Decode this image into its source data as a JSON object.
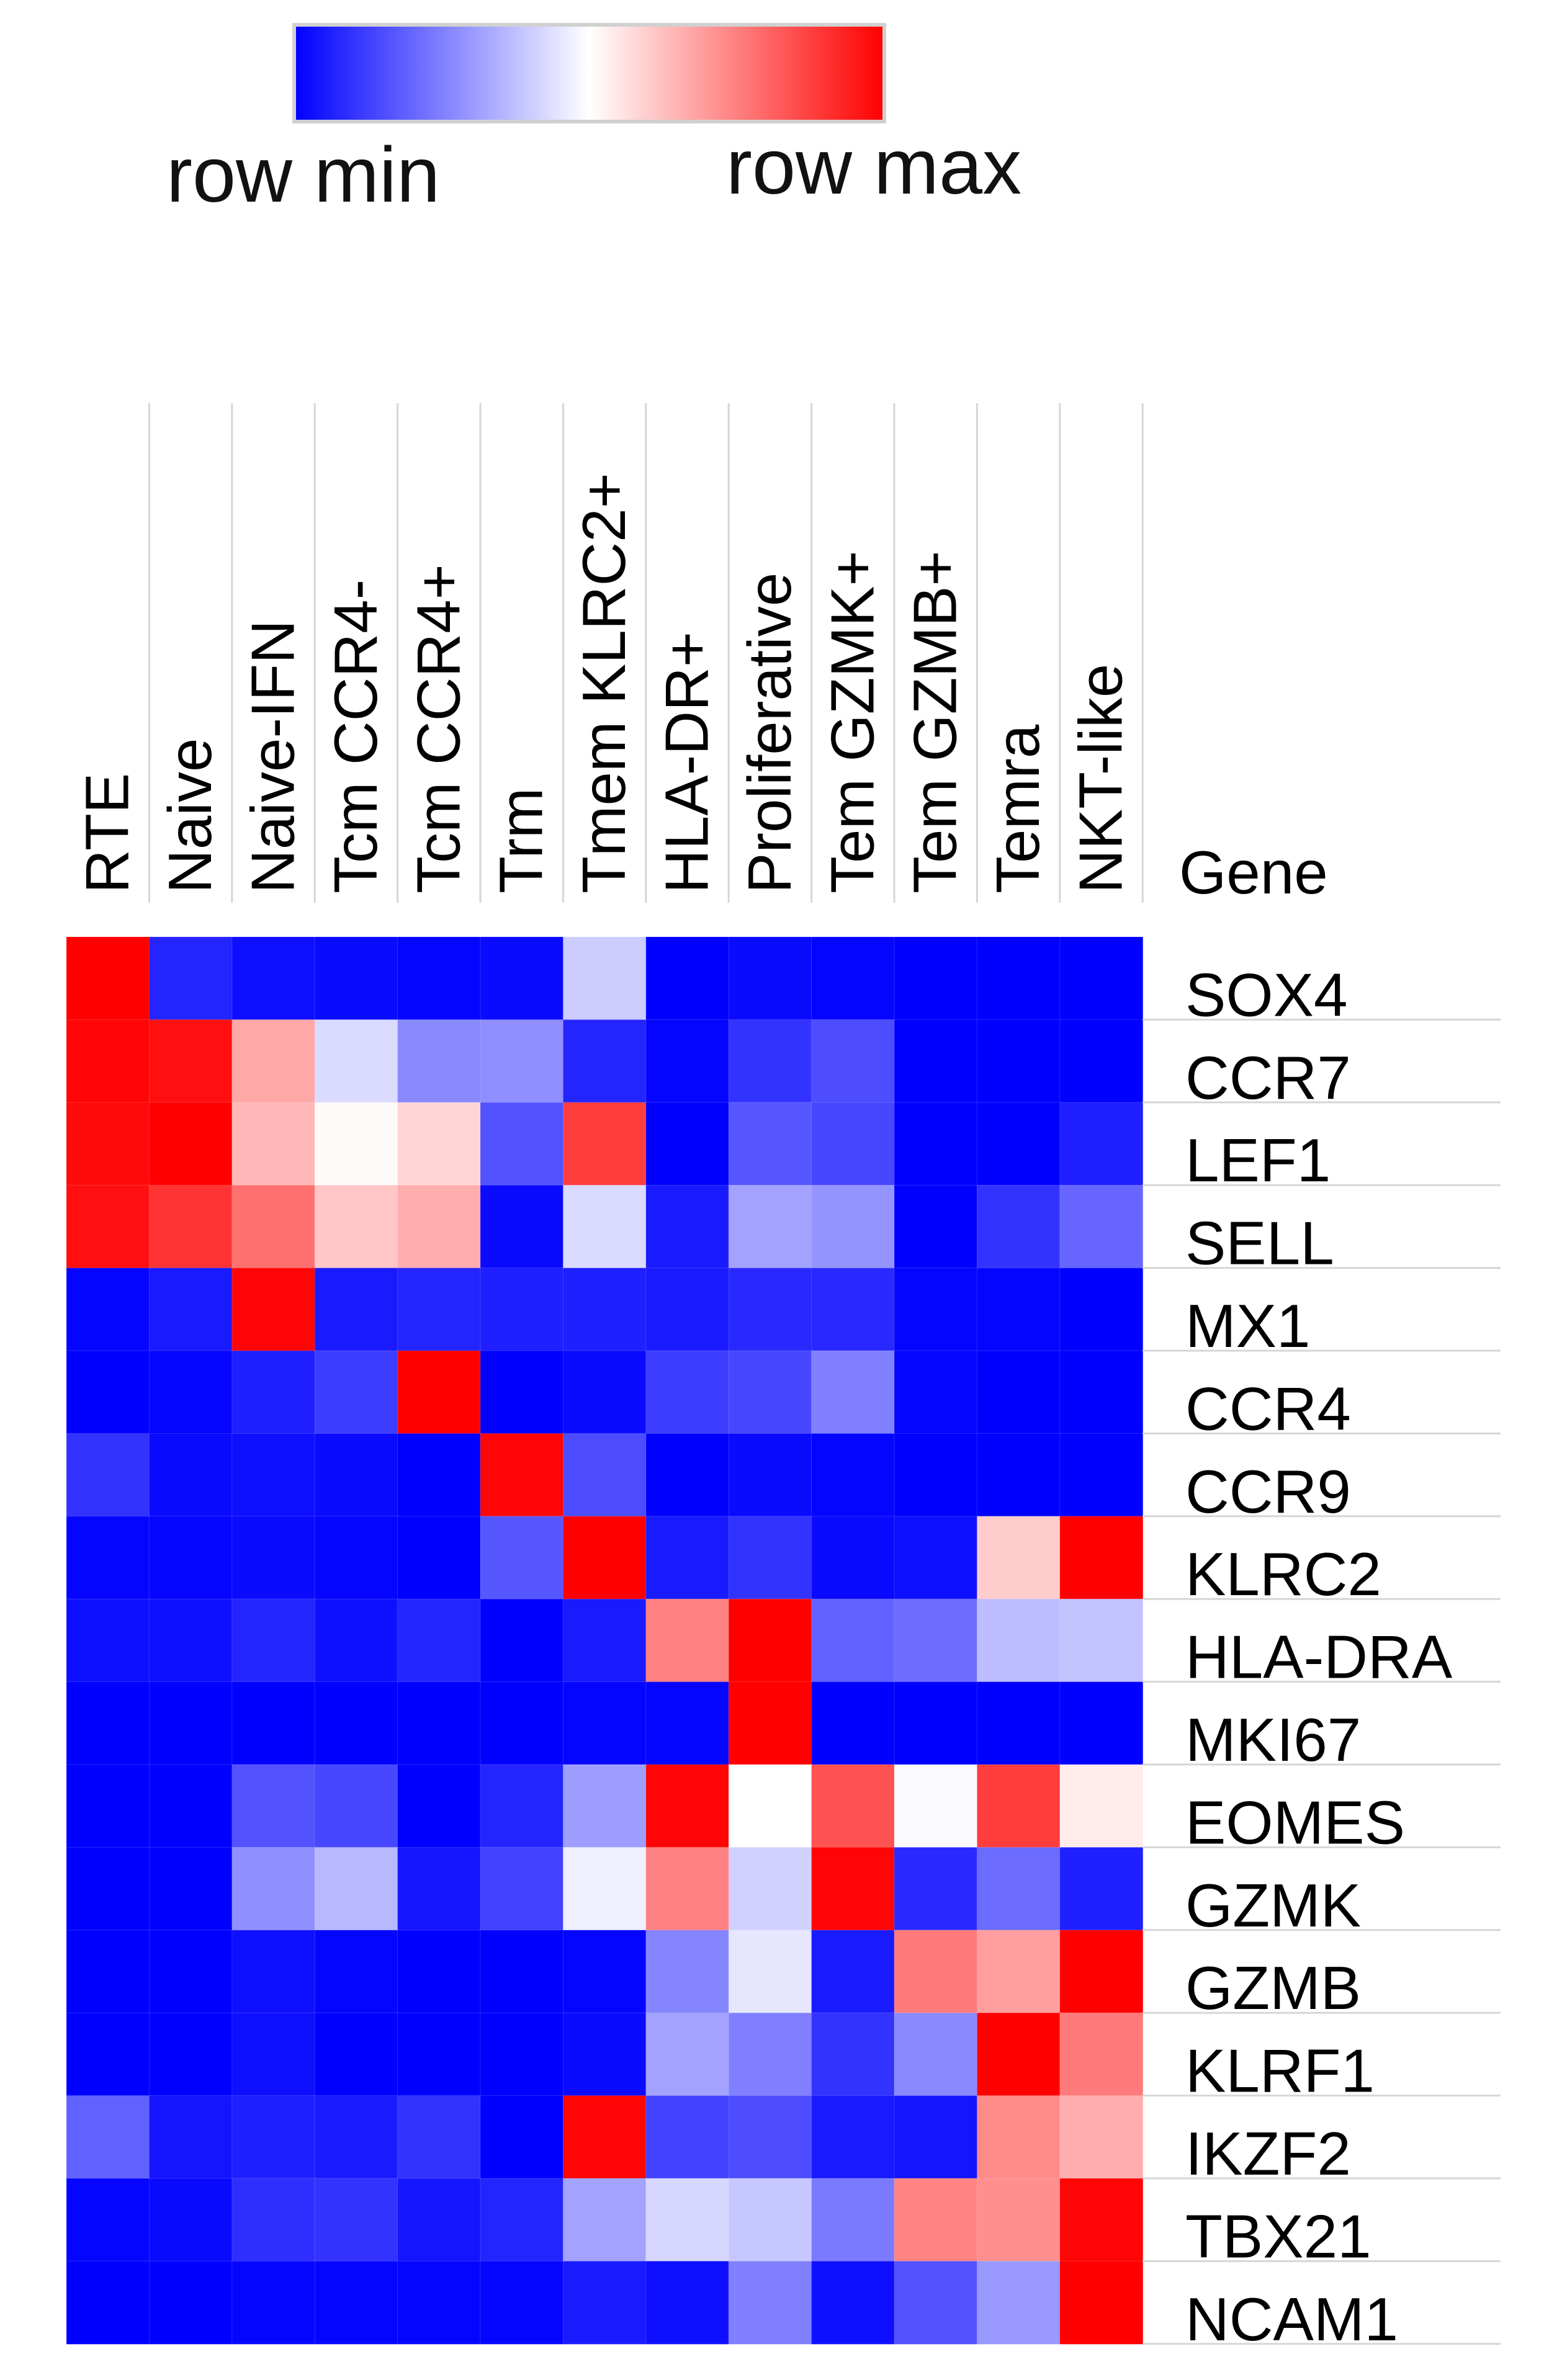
{
  "chart_data": {
    "type": "heatmap",
    "legend": {
      "min_label": "row min",
      "max_label": "row max",
      "colors": [
        "#0000ff",
        "#ffffff",
        "#ff0000"
      ]
    },
    "row_header": "Gene",
    "columns": [
      "RTE",
      "Naive",
      "Naive-IFN",
      "Tcm CCR4-",
      "Tcm CCR4+",
      "Trm",
      "Tmem KLRC2+",
      "HLA-DR+",
      "Proliferative",
      "Tem GZMK+",
      "Tem GZMB+",
      "Temra",
      "NKT-like"
    ],
    "rows": [
      "SOX4",
      "CCR7",
      "LEF1",
      "SELL",
      "MX1",
      "CCR4",
      "CCR9",
      "KLRC2",
      "HLA-DRA",
      "MKI67",
      "EOMES",
      "GZMK",
      "GZMB",
      "KLRF1",
      "IKZF2",
      "TBX21",
      "NCAM1"
    ],
    "values": [
      [
        1.0,
        0.07,
        0.03,
        0.02,
        0.01,
        0.02,
        0.4,
        0.0,
        0.02,
        0.01,
        0.0,
        0.0,
        0.0
      ],
      [
        0.99,
        0.97,
        0.67,
        0.43,
        0.27,
        0.28,
        0.07,
        0.01,
        0.1,
        0.15,
        0.0,
        0.0,
        0.0
      ],
      [
        0.98,
        1.0,
        0.64,
        0.51,
        0.58,
        0.16,
        0.88,
        0.0,
        0.17,
        0.14,
        0.0,
        0.0,
        0.06
      ],
      [
        0.97,
        0.9,
        0.78,
        0.61,
        0.66,
        0.02,
        0.43,
        0.05,
        0.32,
        0.29,
        0.0,
        0.1,
        0.2
      ],
      [
        0.01,
        0.05,
        0.99,
        0.05,
        0.07,
        0.06,
        0.06,
        0.05,
        0.08,
        0.08,
        0.01,
        0.01,
        0.0
      ],
      [
        0.0,
        0.01,
        0.06,
        0.12,
        1.0,
        0.0,
        0.02,
        0.12,
        0.14,
        0.25,
        0.01,
        0.0,
        0.0
      ],
      [
        0.1,
        0.02,
        0.03,
        0.02,
        0.0,
        0.99,
        0.15,
        0.0,
        0.02,
        0.01,
        0.0,
        0.0,
        0.0
      ],
      [
        0.01,
        0.01,
        0.02,
        0.01,
        0.0,
        0.17,
        1.0,
        0.05,
        0.1,
        0.02,
        0.03,
        0.6,
        1.0
      ],
      [
        0.03,
        0.03,
        0.07,
        0.03,
        0.07,
        0.0,
        0.05,
        0.75,
        1.0,
        0.19,
        0.21,
        0.37,
        0.38
      ],
      [
        0.0,
        0.0,
        0.0,
        0.0,
        0.0,
        0.0,
        0.01,
        0.01,
        1.0,
        0.0,
        0.0,
        0.0,
        0.0
      ],
      [
        0.0,
        0.0,
        0.16,
        0.14,
        0.0,
        0.07,
        0.31,
        0.99,
        0.5,
        0.84,
        0.49,
        0.88,
        0.54
      ],
      [
        0.0,
        0.0,
        0.28,
        0.36,
        0.04,
        0.13,
        0.47,
        0.75,
        0.41,
        0.99,
        0.08,
        0.21,
        0.06
      ],
      [
        0.0,
        0.0,
        0.03,
        0.01,
        0.0,
        0.0,
        0.01,
        0.26,
        0.45,
        0.05,
        0.76,
        0.69,
        1.0
      ],
      [
        0.0,
        0.0,
        0.03,
        0.0,
        0.0,
        0.0,
        0.02,
        0.32,
        0.25,
        0.1,
        0.27,
        1.0,
        0.76
      ],
      [
        0.19,
        0.04,
        0.06,
        0.05,
        0.1,
        0.0,
        0.99,
        0.13,
        0.15,
        0.05,
        0.04,
        0.73,
        0.66
      ],
      [
        0.01,
        0.02,
        0.09,
        0.1,
        0.04,
        0.07,
        0.32,
        0.42,
        0.39,
        0.24,
        0.74,
        0.72,
        0.99
      ],
      [
        0.0,
        0.0,
        0.01,
        0.01,
        0.01,
        0.01,
        0.05,
        0.03,
        0.25,
        0.03,
        0.16,
        0.3,
        1.0
      ]
    ]
  }
}
